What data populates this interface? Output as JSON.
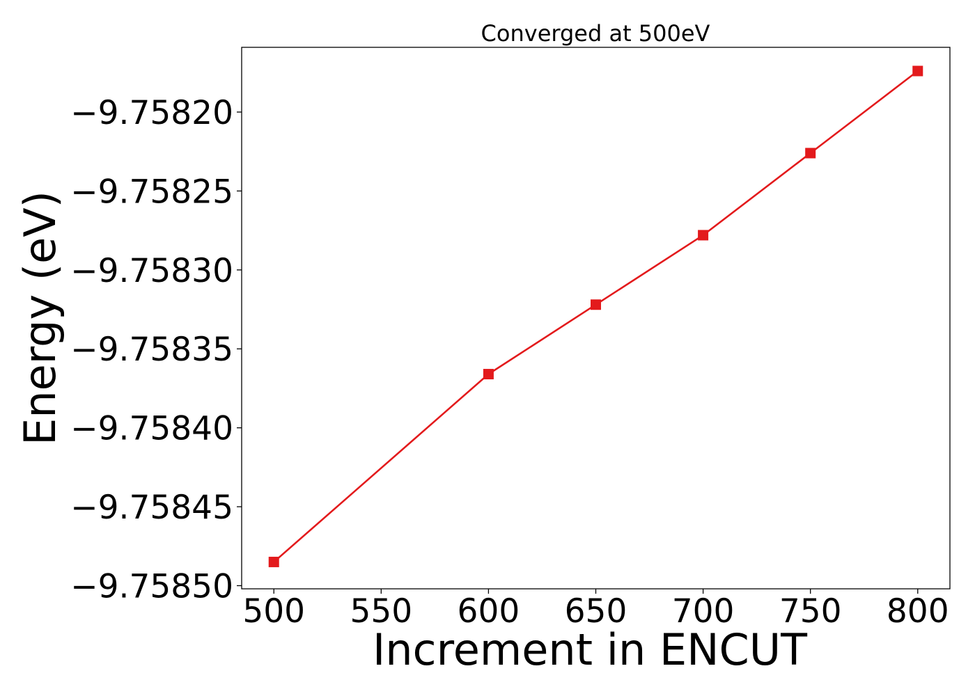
{
  "chart_data": {
    "type": "line",
    "title": "Converged at 500eV",
    "xlabel": "Increment in ENCUT",
    "ylabel": "Energy (eV)",
    "x": [
      500,
      600,
      650,
      700,
      750,
      800
    ],
    "series": [
      {
        "values": [
          -9.758485,
          -9.758366,
          -9.758322,
          -9.758278,
          -9.758226,
          -9.758174
        ],
        "color": "#e31a1c",
        "marker": "square"
      }
    ],
    "xlim": [
      485,
      815
    ],
    "ylim": [
      -9.758502,
      -9.758159
    ],
    "xticks": [
      500,
      550,
      600,
      650,
      700,
      750,
      800
    ],
    "xtick_labels": [
      "500",
      "550",
      "600",
      "650",
      "700",
      "750",
      "800"
    ],
    "yticks": [
      -9.7585,
      -9.75845,
      -9.7584,
      -9.75835,
      -9.7583,
      -9.75825,
      -9.7582
    ],
    "ytick_labels": [
      "−9.75850",
      "−9.75845",
      "−9.75840",
      "−9.75835",
      "−9.75830",
      "−9.75825",
      "−9.75820"
    ],
    "grid": false,
    "legend": "none"
  }
}
